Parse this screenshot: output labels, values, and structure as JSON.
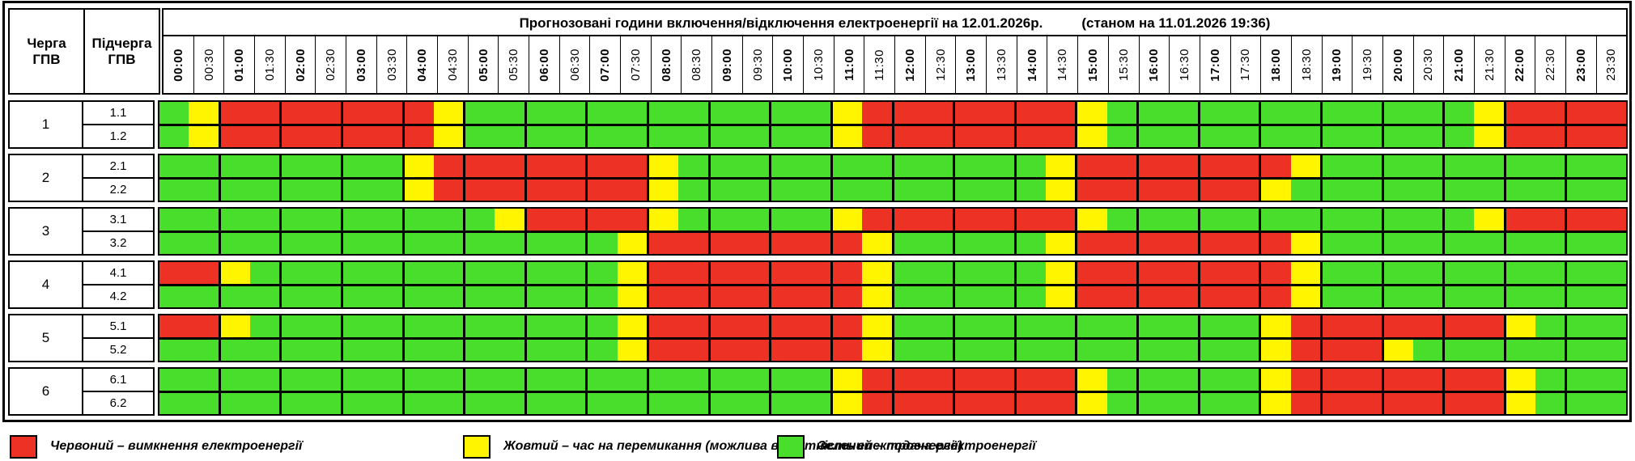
{
  "header": {
    "queue_col": {
      "line1": "Черга",
      "line2": "ГПВ"
    },
    "subqueue_col": {
      "line1": "Підчерга",
      "line2": "ГПВ"
    },
    "title": "Прогнозовані години включення/відключення електроенергії на 12.01.2026р.",
    "status": "(станом на 11.01.2026 19:36)"
  },
  "chart_data": {
    "type": "heatmap",
    "x": [
      "00:00",
      "00:30",
      "01:00",
      "01:30",
      "02:00",
      "02:30",
      "03:00",
      "03:30",
      "04:00",
      "04:30",
      "05:00",
      "05:30",
      "06:00",
      "06:30",
      "07:00",
      "07:30",
      "08:00",
      "08:30",
      "09:00",
      "09:30",
      "10:00",
      "10:30",
      "11:00",
      "11:30",
      "12:00",
      "12:30",
      "13:00",
      "13:30",
      "14:00",
      "14:30",
      "15:00",
      "15:30",
      "16:00",
      "16:30",
      "17:00",
      "17:30",
      "18:00",
      "18:30",
      "19:00",
      "19:30",
      "20:00",
      "20:30",
      "21:00",
      "21:30",
      "22:00",
      "22:30",
      "23:00",
      "23:30"
    ],
    "state_colors": {
      "G": "#49DE2C",
      "Y": "#FFF500",
      "R": "#ED3124"
    },
    "state_meaning": {
      "G": "подача електроенергії",
      "Y": "час на перемикання (можлива відсутність електроенергії)",
      "R": "вимкнення електроенергії"
    },
    "groups": [
      {
        "queue": "1",
        "rows": [
          {
            "subqueue": "1.1",
            "states": "GYRRRRRRRYGGGGGGGGGGGGYRRRRRRRYGGGGGGGGGGGGYRRRR"
          },
          {
            "subqueue": "1.2",
            "states": "GYRRRRRRRYGGGGGGGGGGGGYRRRRRRRYGGGGGGGGGGGGYRRRR"
          }
        ]
      },
      {
        "queue": "2",
        "rows": [
          {
            "subqueue": "2.1",
            "states": "GGGGGGGGYRRRRRRRYGGGGGGGGGGGGYRRRRRRRYGGGGGGGGGG"
          },
          {
            "subqueue": "2.2",
            "states": "GGGGGGGGYRRRRRRRYGGGGGGGGGGGGYRRRRRRYGGGGGGGGGGG"
          }
        ]
      },
      {
        "queue": "3",
        "rows": [
          {
            "subqueue": "3.1",
            "states": "GGGGGGGGGGGYRRRRYGGGGGYRRRRRRRYGGGGGGGGGGGGYRRRR"
          },
          {
            "subqueue": "3.2",
            "states": "GGGGGGGGGGGGGGGYRRRRRRRYGGGGGYRRRRRRRYGGGGGGGGGG"
          }
        ]
      },
      {
        "queue": "4",
        "rows": [
          {
            "subqueue": "4.1",
            "states": "RRYGGGGGGGGGGGGYRRRRRRRYGGGGGYRRRRRRRYGGGGGGGGGG"
          },
          {
            "subqueue": "4.2",
            "states": "GGGGGGGGGGGGGGGYRRRRRRRYGGGGGYRRRRRRRYGGGGGGGGGG"
          }
        ]
      },
      {
        "queue": "5",
        "rows": [
          {
            "subqueue": "5.1",
            "states": "RRYGGGGGGGGGGGGYRRRRRRRYGGGGGGGGGGGGYRRRRRRRYGGG"
          },
          {
            "subqueue": "5.2",
            "states": "GGGGGGGGGGGGGGGYRRRRRRRYGGGGGGGGGGGGYRRRYGGGGGGG"
          }
        ]
      },
      {
        "queue": "6",
        "rows": [
          {
            "subqueue": "6.1",
            "states": "GGGGGGGGGGGGGGGGGGGGGGYRRRRRRRYGGGGGYRRRRRRRYGGG"
          },
          {
            "subqueue": "6.2",
            "states": "GGGGGGGGGGGGGGGGGGGGGGYRRRRRRRYGGGGGYRRRRRRRYGGG"
          }
        ]
      }
    ]
  },
  "legend": {
    "items": [
      {
        "color": "#ED3124",
        "label": "Червоний – вимкнення електроенергії"
      },
      {
        "color": "#FFF500",
        "label": "Жовтий – час на перемикання (можлива відсутність електроенергії)"
      },
      {
        "color": "#49DE2C",
        "label": "Зелений – подача електроенергії"
      }
    ]
  }
}
